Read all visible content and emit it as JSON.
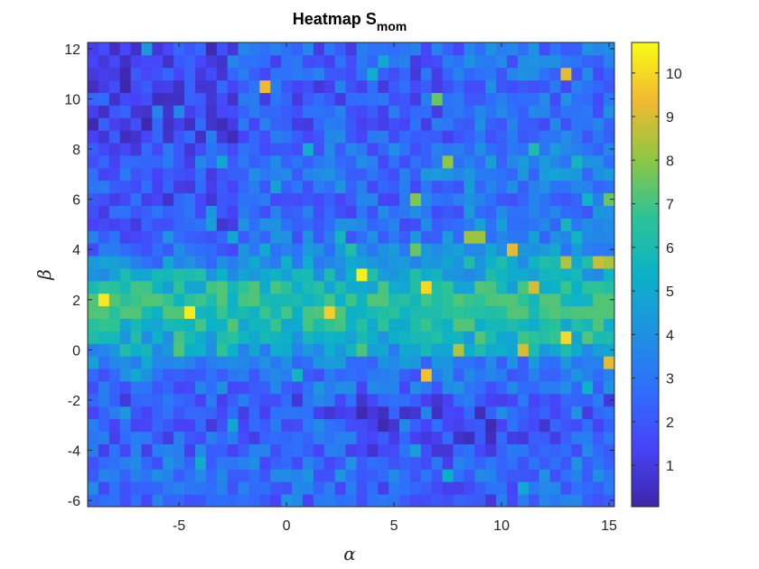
{
  "chart_data": {
    "type": "heatmap",
    "title": "Heatmap S",
    "title_subscript": "mom",
    "xlabel": "α",
    "ylabel": "β",
    "xlim": [
      -9.25,
      15.25
    ],
    "ylim": [
      -6.25,
      12.25
    ],
    "x_ticks": [
      -5,
      0,
      5,
      10,
      15
    ],
    "y_ticks": [
      -6,
      -4,
      -2,
      0,
      2,
      4,
      6,
      8,
      10,
      12
    ],
    "grid_x": {
      "start": -9,
      "step": 0.5,
      "count": 49
    },
    "grid_y": {
      "start": -6,
      "step": 0.5,
      "count": 37
    },
    "colorbar": {
      "range": [
        0.05,
        10.7
      ],
      "ticks": [
        1,
        2,
        3,
        4,
        5,
        6,
        7,
        8,
        9,
        10
      ],
      "colormap": "parula"
    },
    "row_base": [
      2.4,
      2.6,
      3.0,
      2.8,
      2.4,
      2.2,
      2.0,
      1.8,
      2.0,
      2.6,
      3.0,
      3.4,
      4.4,
      5.0,
      5.8,
      6.4,
      6.6,
      5.8,
      5.0,
      4.4,
      3.6,
      3.0,
      2.8,
      2.6,
      2.5,
      2.8,
      3.0,
      2.8,
      2.6,
      2.4,
      2.2,
      2.2,
      2.2,
      2.1,
      2.2,
      2.2,
      2.3
    ],
    "hot_cells": [
      {
        "x": -1.0,
        "y": 10.5,
        "value": 9.3
      },
      {
        "x": 13.0,
        "y": 11.0,
        "value": 9.2
      },
      {
        "x": 7.0,
        "y": 10.0,
        "value": 7.5
      },
      {
        "x": 7.5,
        "y": 7.5,
        "value": 8.0
      },
      {
        "x": 6.0,
        "y": 6.0,
        "value": 7.8
      },
      {
        "x": 15.0,
        "y": 6.0,
        "value": 7.5
      },
      {
        "x": 8.5,
        "y": 4.5,
        "value": 8.2
      },
      {
        "x": 9.0,
        "y": 4.5,
        "value": 8.2
      },
      {
        "x": 10.5,
        "y": 4.0,
        "value": 9.2
      },
      {
        "x": 13.0,
        "y": 3.5,
        "value": 8.5
      },
      {
        "x": 14.5,
        "y": 3.5,
        "value": 8.8
      },
      {
        "x": 15.0,
        "y": 3.5,
        "value": 8.4
      },
      {
        "x": 3.5,
        "y": 3.0,
        "value": 10.5
      },
      {
        "x": 6.5,
        "y": 2.5,
        "value": 10.0
      },
      {
        "x": 11.5,
        "y": 2.5,
        "value": 8.9
      },
      {
        "x": -8.5,
        "y": 2.0,
        "value": 10.3
      },
      {
        "x": -4.5,
        "y": 1.5,
        "value": 10.4
      },
      {
        "x": 2.0,
        "y": 1.5,
        "value": 9.8
      },
      {
        "x": 13.0,
        "y": 0.5,
        "value": 10.0
      },
      {
        "x": 11.0,
        "y": 0.0,
        "value": 9.0
      },
      {
        "x": 8.0,
        "y": 0.0,
        "value": 8.5
      },
      {
        "x": 15.0,
        "y": -0.5,
        "value": 9.2
      },
      {
        "x": 6.5,
        "y": -1.0,
        "value": 9.5
      },
      {
        "x": 6.0,
        "y": 4.0,
        "value": 7.5
      }
    ]
  }
}
